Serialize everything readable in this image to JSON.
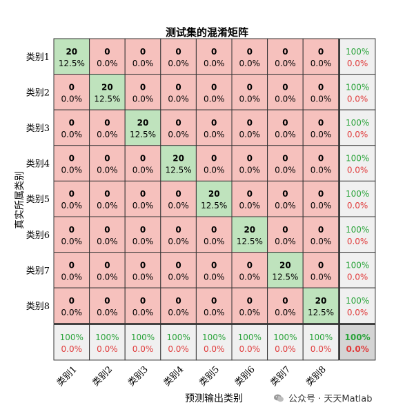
{
  "title": "测试集的混淆矩阵",
  "chart_data": {
    "type": "heatmap",
    "title": "测试集的混淆矩阵",
    "xlabel": "预测输出类别",
    "ylabel": "真实所属类别",
    "row_labels": [
      "类别1",
      "类别2",
      "类别3",
      "类别4",
      "类别5",
      "类别6",
      "类别7",
      "类别8"
    ],
    "col_labels": [
      "类别1",
      "类别2",
      "类别3",
      "类别4",
      "类别5",
      "类别6",
      "类别7",
      "类别8"
    ],
    "counts": [
      [
        20,
        0,
        0,
        0,
        0,
        0,
        0,
        0
      ],
      [
        0,
        20,
        0,
        0,
        0,
        0,
        0,
        0
      ],
      [
        0,
        0,
        20,
        0,
        0,
        0,
        0,
        0
      ],
      [
        0,
        0,
        0,
        20,
        0,
        0,
        0,
        0
      ],
      [
        0,
        0,
        0,
        0,
        20,
        0,
        0,
        0
      ],
      [
        0,
        0,
        0,
        0,
        0,
        20,
        0,
        0
      ],
      [
        0,
        0,
        0,
        0,
        0,
        0,
        20,
        0
      ],
      [
        0,
        0,
        0,
        0,
        0,
        0,
        0,
        20
      ]
    ],
    "percent_labels": [
      [
        "12.5%",
        "0.0%",
        "0.0%",
        "0.0%",
        "0.0%",
        "0.0%",
        "0.0%",
        "0.0%"
      ],
      [
        "0.0%",
        "12.5%",
        "0.0%",
        "0.0%",
        "0.0%",
        "0.0%",
        "0.0%",
        "0.0%"
      ],
      [
        "0.0%",
        "0.0%",
        "12.5%",
        "0.0%",
        "0.0%",
        "0.0%",
        "0.0%",
        "0.0%"
      ],
      [
        "0.0%",
        "0.0%",
        "0.0%",
        "12.5%",
        "0.0%",
        "0.0%",
        "0.0%",
        "0.0%"
      ],
      [
        "0.0%",
        "0.0%",
        "0.0%",
        "0.0%",
        "12.5%",
        "0.0%",
        "0.0%",
        "0.0%"
      ],
      [
        "0.0%",
        "0.0%",
        "0.0%",
        "0.0%",
        "0.0%",
        "12.5%",
        "0.0%",
        "0.0%"
      ],
      [
        "0.0%",
        "0.0%",
        "0.0%",
        "0.0%",
        "0.0%",
        "0.0%",
        "12.5%",
        "0.0%"
      ],
      [
        "0.0%",
        "0.0%",
        "0.0%",
        "0.0%",
        "0.0%",
        "0.0%",
        "0.0%",
        "12.5%"
      ]
    ],
    "row_summary": [
      {
        "correct": "100%",
        "wrong": "0.0%"
      },
      {
        "correct": "100%",
        "wrong": "0.0%"
      },
      {
        "correct": "100%",
        "wrong": "0.0%"
      },
      {
        "correct": "100%",
        "wrong": "0.0%"
      },
      {
        "correct": "100%",
        "wrong": "0.0%"
      },
      {
        "correct": "100%",
        "wrong": "0.0%"
      },
      {
        "correct": "100%",
        "wrong": "0.0%"
      },
      {
        "correct": "100%",
        "wrong": "0.0%"
      }
    ],
    "col_summary": [
      {
        "correct": "100%",
        "wrong": "0.0%"
      },
      {
        "correct": "100%",
        "wrong": "0.0%"
      },
      {
        "correct": "100%",
        "wrong": "0.0%"
      },
      {
        "correct": "100%",
        "wrong": "0.0%"
      },
      {
        "correct": "100%",
        "wrong": "0.0%"
      },
      {
        "correct": "100%",
        "wrong": "0.0%"
      },
      {
        "correct": "100%",
        "wrong": "0.0%"
      },
      {
        "correct": "100%",
        "wrong": "0.0%"
      }
    ],
    "overall": {
      "correct": "100%",
      "wrong": "0.0%"
    },
    "colors": {
      "correct_cell": "#bfe3bd",
      "wrong_cell": "#f6c1bd",
      "summary_cell": "#f0f0f0",
      "overall_cell": "#d4d4d4",
      "correct_text": "#2aa33a",
      "wrong_text": "#e03a3a"
    }
  },
  "watermark": {
    "text": "公众号 · 天天Matlab",
    "icon": "wechat-icon"
  }
}
